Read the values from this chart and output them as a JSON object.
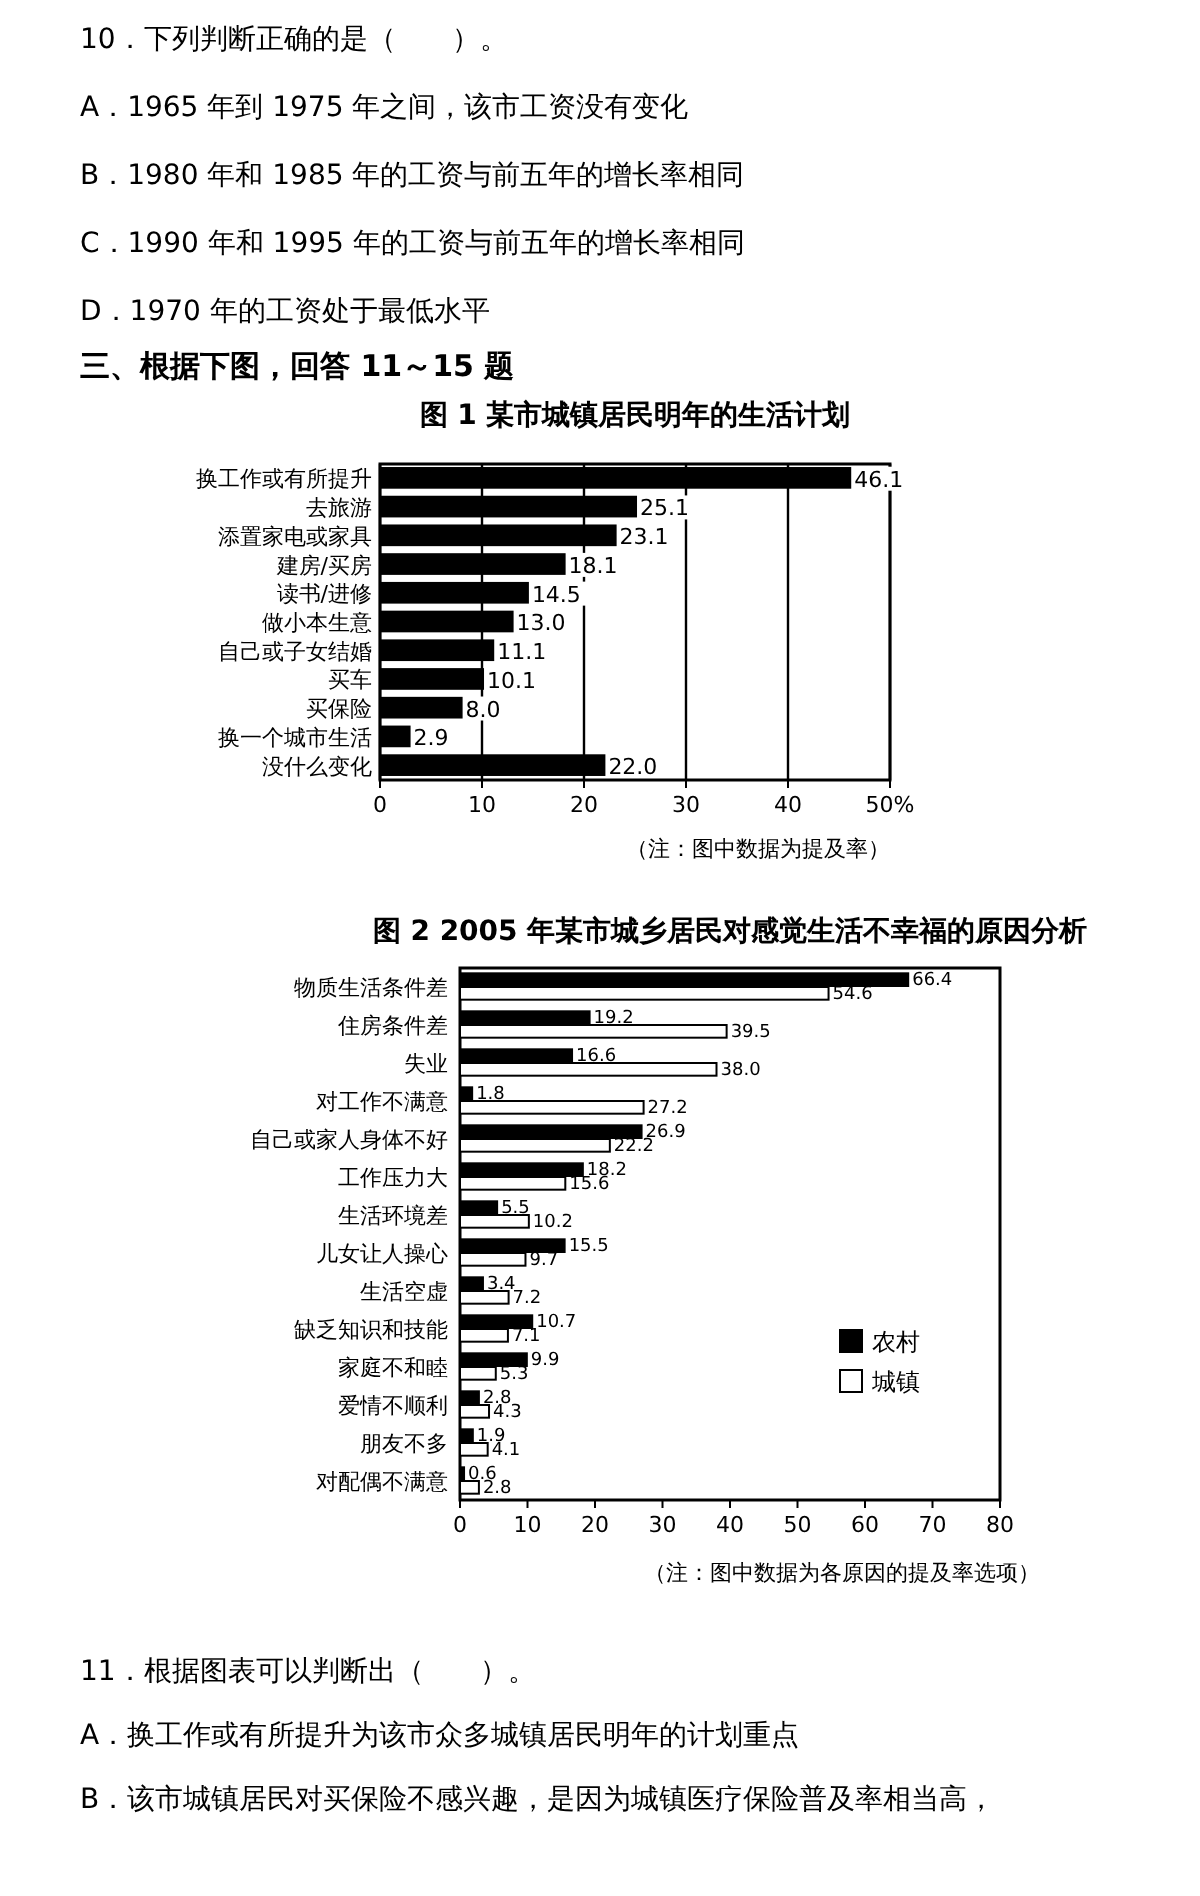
{
  "chart_data": [
    {
      "type": "other",
      "annotations": [
        "10．下列判断正确的是（　　）。",
        "A．1965 年到 1975 年之间，该市工资没有变化",
        "B．1980 年和 1985 年的工资与前五年的增长率相同",
        "C．1990 年和 1995 年的工资与前五年的增长率相同",
        "D．1970 年的工资处于最低水平"
      ],
      "title": "三、根据下图，回答 11～15 题"
    },
    {
      "type": "bar",
      "orientation": "horizontal",
      "title": "图 1 某市城镇居民明年的生活计划",
      "categories": [
        "换工作或有所提升",
        "去旅游",
        "添置家电或家具",
        "建房/买房",
        "读书/进修",
        "做小本生意",
        "自己或子女结婚",
        "买车",
        "买保险",
        "换一个城市生活",
        "没什么变化"
      ],
      "values": [
        46.1,
        25.1,
        23.1,
        18.1,
        14.5,
        13.0,
        11.1,
        10.1,
        8.0,
        2.9,
        22.0
      ],
      "value_labels": [
        "46.1",
        "25.1",
        "23.1",
        "18.1",
        "14.5",
        "13.0",
        "11.1",
        "10.1",
        "8.0",
        "2.9",
        "22.0"
      ],
      "color": "#000000",
      "xlim": [
        0,
        50
      ],
      "xticks": [
        0,
        10,
        20,
        30,
        40,
        {
          "value": 50,
          "label": "50%"
        }
      ],
      "grid": "x",
      "annotations": [
        "（注：图中数据为提及率）"
      ]
    },
    {
      "type": "bar",
      "orientation": "horizontal",
      "title": "图 2 2005 年某市城乡居民对感觉生活不幸福的原因分析",
      "categories": [
        "物质生活条件差",
        "住房条件差",
        "失业",
        "对工作不满意",
        "自己或家人身体不好",
        "工作压力大",
        "生活环境差",
        "儿女让人操心",
        "生活空虚",
        "缺乏知识和技能",
        "家庭不和睦",
        "爱情不顺利",
        "朋友不多",
        "对配偶不满意"
      ],
      "series": [
        {
          "name": "农村",
          "color": "#000000",
          "values": [
            66.4,
            19.2,
            16.6,
            1.8,
            26.9,
            18.2,
            5.5,
            15.5,
            3.4,
            10.7,
            9.9,
            2.8,
            1.9,
            0.6
          ],
          "value_labels": [
            "66.4",
            "19.2",
            "16.6",
            "1.8",
            "26.9",
            "18.2",
            "5.5",
            "15.5",
            "3.4",
            "10.7",
            "9.9",
            "2.8",
            "1.9",
            "0.6"
          ]
        },
        {
          "name": "城镇",
          "color": "#ffffff",
          "values": [
            54.6,
            39.5,
            38.0,
            27.2,
            22.2,
            15.6,
            10.2,
            9.7,
            7.2,
            7.1,
            5.3,
            4.3,
            4.1,
            2.8
          ],
          "value_labels": [
            "54.6",
            "39.5",
            "38.0",
            "27.2",
            "22.2",
            "15.6",
            "10.2",
            "9.7",
            "7.2",
            "7.1",
            "5.3",
            "4.3",
            "4.1",
            "2.8"
          ]
        }
      ],
      "xlim": [
        0,
        80
      ],
      "xticks": [
        0,
        10,
        20,
        30,
        40,
        50,
        60,
        70,
        80
      ],
      "legend": "bottom right",
      "annotations": [
        "（注：图中数据为各原因的提及率选项）"
      ]
    },
    {
      "type": "other",
      "annotations": [
        "11．根据图表可以判断出（　　）。",
        "A．换工作或有所提升为该市众多城镇居民明年的计划重点",
        "B．该市城镇居民对买保险不感兴趣，是因为城镇医疗保险普及率相当高，"
      ]
    }
  ]
}
